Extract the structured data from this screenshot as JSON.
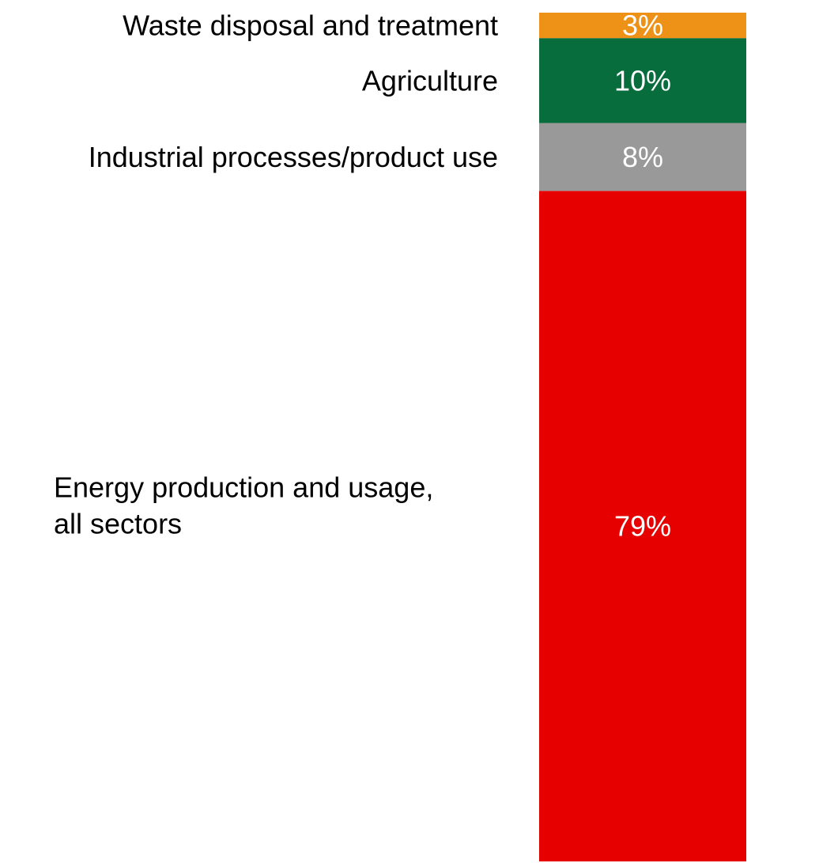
{
  "chart_data": {
    "type": "bar",
    "stacked": true,
    "orientation": "vertical",
    "percent_total": 100,
    "grid": false,
    "legend": "none",
    "segments": [
      {
        "category": "Energy production and usage, all sectors",
        "category_lines": [
          "Energy production and usage,",
          "all sectors"
        ],
        "value": 79,
        "label": "79%",
        "color": "#e60000"
      },
      {
        "category": "Industrial processes/product use",
        "category_lines": [
          "Industrial processes/product use"
        ],
        "value": 8,
        "label": "8%",
        "color": "#999999"
      },
      {
        "category": "Agriculture",
        "category_lines": [
          "Agriculture"
        ],
        "value": 10,
        "label": "10%",
        "color": "#076d3c"
      },
      {
        "category": "Waste disposal and treatment",
        "category_lines": [
          "Waste disposal and treatment"
        ],
        "value": 3,
        "label": "3%",
        "color": "#ed9117"
      }
    ]
  }
}
